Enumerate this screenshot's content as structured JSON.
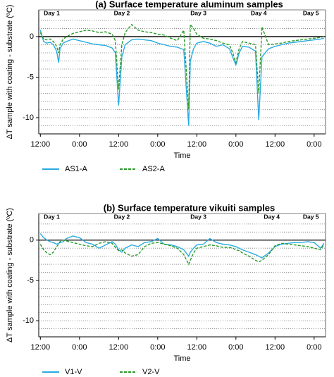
{
  "chart_data": [
    {
      "type": "line",
      "title": "(a) Surface temperature aluminum samples",
      "x_label": "Time",
      "y_label": "ΔT sample with coating - substrate (ºC)",
      "xlim": [
        11.5,
        99.5
      ],
      "xticks": [
        {
          "value": 12,
          "label": "12:00"
        },
        {
          "value": 24,
          "label": "0:00"
        },
        {
          "value": 36,
          "label": "12:00"
        },
        {
          "value": 48,
          "label": "0:00"
        },
        {
          "value": 60,
          "label": "12:00"
        },
        {
          "value": 72,
          "label": "0:00"
        },
        {
          "value": 84,
          "label": "12:00"
        },
        {
          "value": 96,
          "label": "0:00"
        }
      ],
      "ylim": [
        -12,
        3.3
      ],
      "yticks": [
        0,
        -5,
        -10
      ],
      "minor_yticks": [
        2,
        1,
        -1,
        -2,
        -3,
        -4,
        -6,
        -7,
        -8,
        -9,
        -11
      ],
      "zero_line": true,
      "annotations": [
        {
          "text": "Day 1",
          "x": 15.5
        },
        {
          "text": "Day 2",
          "x": 37
        },
        {
          "text": "Day 3",
          "x": 60.5
        },
        {
          "text": "Day 4",
          "x": 79
        },
        {
          "text": "Day 5",
          "x": 95
        }
      ],
      "x": [
        12,
        13,
        14,
        15,
        16,
        17,
        17.6,
        18,
        19,
        20,
        22,
        24,
        26,
        28,
        30,
        32,
        34,
        35,
        36,
        37,
        38,
        40,
        42,
        44,
        46,
        48,
        50,
        52,
        54,
        56,
        57.5,
        58,
        59,
        60,
        62,
        64,
        66,
        68,
        70,
        71,
        72,
        73,
        74,
        76,
        78,
        79,
        80,
        82,
        84,
        86,
        88,
        90,
        92,
        94,
        96,
        98,
        99
      ],
      "series": [
        {
          "name": "AS1-A",
          "color": "#29abe2",
          "line_style": "solid",
          "values": [
            0.8,
            -0.6,
            -0.8,
            -0.7,
            -1.0,
            -1.8,
            -3.2,
            -1.5,
            -0.8,
            -0.6,
            -0.3,
            -0.5,
            -0.7,
            -0.9,
            -1.0,
            -1.1,
            -1.4,
            -2.0,
            -8.5,
            -2.5,
            -1.0,
            -0.4,
            -0.3,
            -0.4,
            -0.5,
            -0.8,
            -1.0,
            -1.2,
            -1.3,
            -1.6,
            -11.0,
            -3.0,
            -1.5,
            -0.8,
            -0.6,
            -0.8,
            -1.2,
            -1.0,
            -1.5,
            -2.5,
            -3.5,
            -2.0,
            -1.2,
            -1.3,
            -1.8,
            -10.3,
            -2.5,
            -1.5,
            -1.2,
            -1.0,
            -0.8,
            -0.7,
            -0.6,
            -0.5,
            -0.4,
            -0.3,
            -0.2
          ]
        },
        {
          "name": "AS2-A",
          "color": "#2a9a2a",
          "line_style": "dashed",
          "values": [
            0.5,
            -0.3,
            -0.4,
            -0.3,
            -0.6,
            -1.2,
            -2.0,
            -1.0,
            -0.3,
            0,
            0.4,
            0.6,
            0.8,
            0.7,
            0.5,
            0.6,
            0.3,
            -0.5,
            -6.5,
            -1.0,
            0.5,
            1.5,
            0.8,
            0.6,
            0.5,
            0.3,
            0.2,
            -0.2,
            -0.5,
            0.8,
            -9.0,
            1.5,
            1.0,
            0.3,
            -0.2,
            -0.3,
            -0.5,
            -0.8,
            -1.0,
            -2.0,
            -3.2,
            -1.5,
            -0.6,
            -0.8,
            -1.0,
            -7.0,
            1.2,
            -1.0,
            -0.9,
            -0.8,
            -0.6,
            -0.5,
            -0.4,
            -0.3,
            -0.2,
            -0.1,
            0
          ]
        }
      ]
    },
    {
      "type": "line",
      "title": "(b) Surface temperature vikuiti samples",
      "x_label": "Time",
      "y_label": "ΔT sample with coating - substrate (ºC)",
      "xlim": [
        11.5,
        99.5
      ],
      "xticks": [
        {
          "value": 12,
          "label": "12:00"
        },
        {
          "value": 24,
          "label": "0:00"
        },
        {
          "value": 36,
          "label": "12:00"
        },
        {
          "value": 48,
          "label": "0:00"
        },
        {
          "value": 60,
          "label": "12:00"
        },
        {
          "value": 72,
          "label": "0:00"
        },
        {
          "value": 84,
          "label": "12:00"
        },
        {
          "value": 96,
          "label": "0:00"
        }
      ],
      "ylim": [
        -12,
        3.3
      ],
      "yticks": [
        0,
        -5,
        -10
      ],
      "minor_yticks": [
        2,
        1,
        -1,
        -2,
        -3,
        -4,
        -6,
        -7,
        -8,
        -9,
        -11
      ],
      "zero_line": true,
      "annotations": [
        {
          "text": "Day 1",
          "x": 15.5
        },
        {
          "text": "Day 2",
          "x": 37
        },
        {
          "text": "Day 3",
          "x": 60.5
        },
        {
          "text": "Day 4",
          "x": 83
        },
        {
          "text": "Day 5",
          "x": 95
        }
      ],
      "x": [
        12,
        13,
        14,
        15,
        16,
        17,
        17.6,
        18,
        19,
        20,
        22,
        24,
        26,
        28,
        30,
        32,
        34,
        35,
        36,
        37,
        38,
        40,
        42,
        44,
        46,
        48,
        50,
        52,
        54,
        56,
        57.5,
        58,
        59,
        60,
        62,
        64,
        66,
        68,
        70,
        71,
        72,
        73,
        74,
        76,
        78,
        79,
        80,
        82,
        84,
        86,
        88,
        90,
        92,
        94,
        96,
        98,
        99
      ],
      "series": [
        {
          "name": "V1-V",
          "color": "#29abe2",
          "line_style": "solid",
          "values": [
            0.8,
            0.3,
            0,
            -0.2,
            -0.3,
            -0.5,
            -0.4,
            -0.3,
            -0.2,
            0.2,
            0.5,
            0.3,
            -0.3,
            -0.5,
            -1.0,
            -0.6,
            -0.2,
            -0.5,
            -1.2,
            -1.5,
            -1.0,
            -0.6,
            -0.8,
            -0.3,
            -0.2,
            0.2,
            -0.5,
            -0.6,
            -0.8,
            -1.2,
            -2.0,
            -1.5,
            -1.0,
            -0.6,
            -0.5,
            0.2,
            -0.3,
            -0.5,
            -0.6,
            -0.7,
            -0.8,
            -1.0,
            -1.2,
            -1.5,
            -1.8,
            -2.0,
            -2.2,
            -1.6,
            -0.8,
            -0.5,
            -0.4,
            -0.3,
            -0.3,
            -0.2,
            -0.3,
            -1.0,
            -0.4
          ]
        },
        {
          "name": "V2-V",
          "color": "#2a9a2a",
          "line_style": "dashed",
          "values": [
            -0.5,
            -1.2,
            -1.6,
            -1.8,
            -1.5,
            -0.8,
            -0.5,
            -0.2,
            0,
            -0.1,
            -0.3,
            -0.5,
            -0.7,
            -0.8,
            -0.4,
            -0.2,
            -0.4,
            -0.9,
            -1.3,
            -1.2,
            -1.6,
            -2.0,
            -1.8,
            -0.8,
            -0.4,
            -0.3,
            -0.5,
            -0.7,
            -1.0,
            -1.8,
            -3.0,
            -2.5,
            -1.6,
            -1.0,
            -0.8,
            -0.6,
            -0.7,
            -0.9,
            -0.9,
            -1.0,
            -1.2,
            -1.3,
            -1.6,
            -2.0,
            -2.5,
            -2.7,
            -2.5,
            -1.8,
            -0.7,
            -0.4,
            -0.5,
            -0.6,
            -0.7,
            -0.8,
            -1.0,
            -1.2,
            -0.5
          ]
        }
      ]
    }
  ]
}
